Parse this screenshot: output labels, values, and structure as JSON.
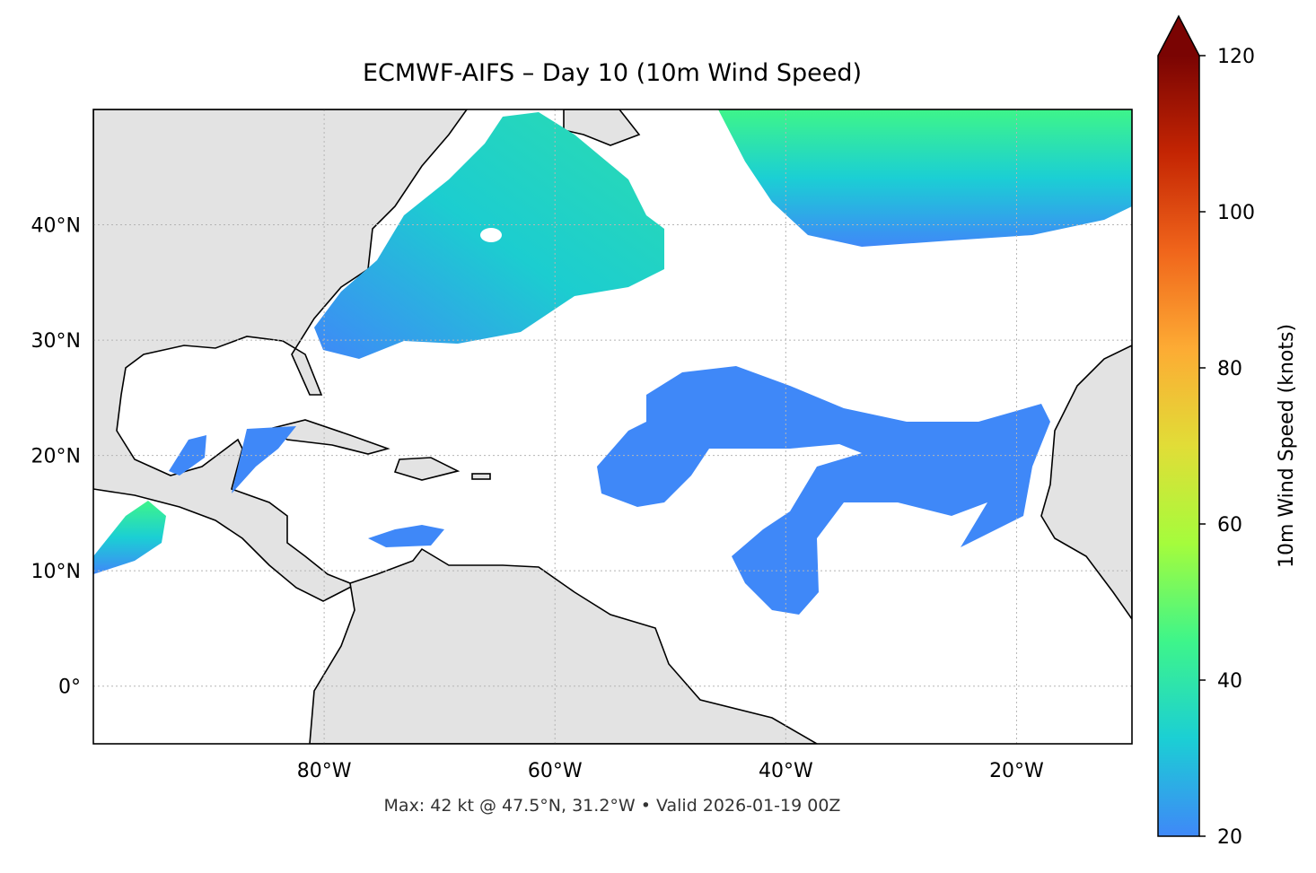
{
  "map": {
    "title": "ECMWF-AIFS – Day 10 (10m Wind Speed)",
    "footer": "Max: 42 kt @ 47.5°N, 31.2°W • Valid 2026-01-19 00Z",
    "lon": {
      "lim": [
        -100,
        -10
      ],
      "ticks": [
        {
          "value": -80,
          "label": "80°W"
        },
        {
          "value": -60,
          "label": "60°W"
        },
        {
          "value": -40,
          "label": "40°W"
        },
        {
          "value": -20,
          "label": "20°W"
        }
      ]
    },
    "lat": {
      "lim": [
        -5,
        50
      ],
      "ticks": [
        {
          "value": 0,
          "label": "0°"
        },
        {
          "value": 10,
          "label": "10°N"
        },
        {
          "value": 20,
          "label": "20°N"
        },
        {
          "value": 30,
          "label": "30°N"
        },
        {
          "value": 40,
          "label": "40°N"
        }
      ]
    },
    "colorbar": {
      "label": "10m Wind Speed (knots)",
      "lim": [
        20,
        120
      ],
      "ticks": [
        20,
        40,
        60,
        80,
        100,
        120
      ],
      "colors": [
        "#3f88f8",
        "#1bcfd4",
        "#3ef58a",
        "#a5fc3c",
        "#e1dd37",
        "#fdab34",
        "#f0651b",
        "#c42503",
        "#7a0403"
      ],
      "extend_color": "#7a0403"
    }
  }
}
